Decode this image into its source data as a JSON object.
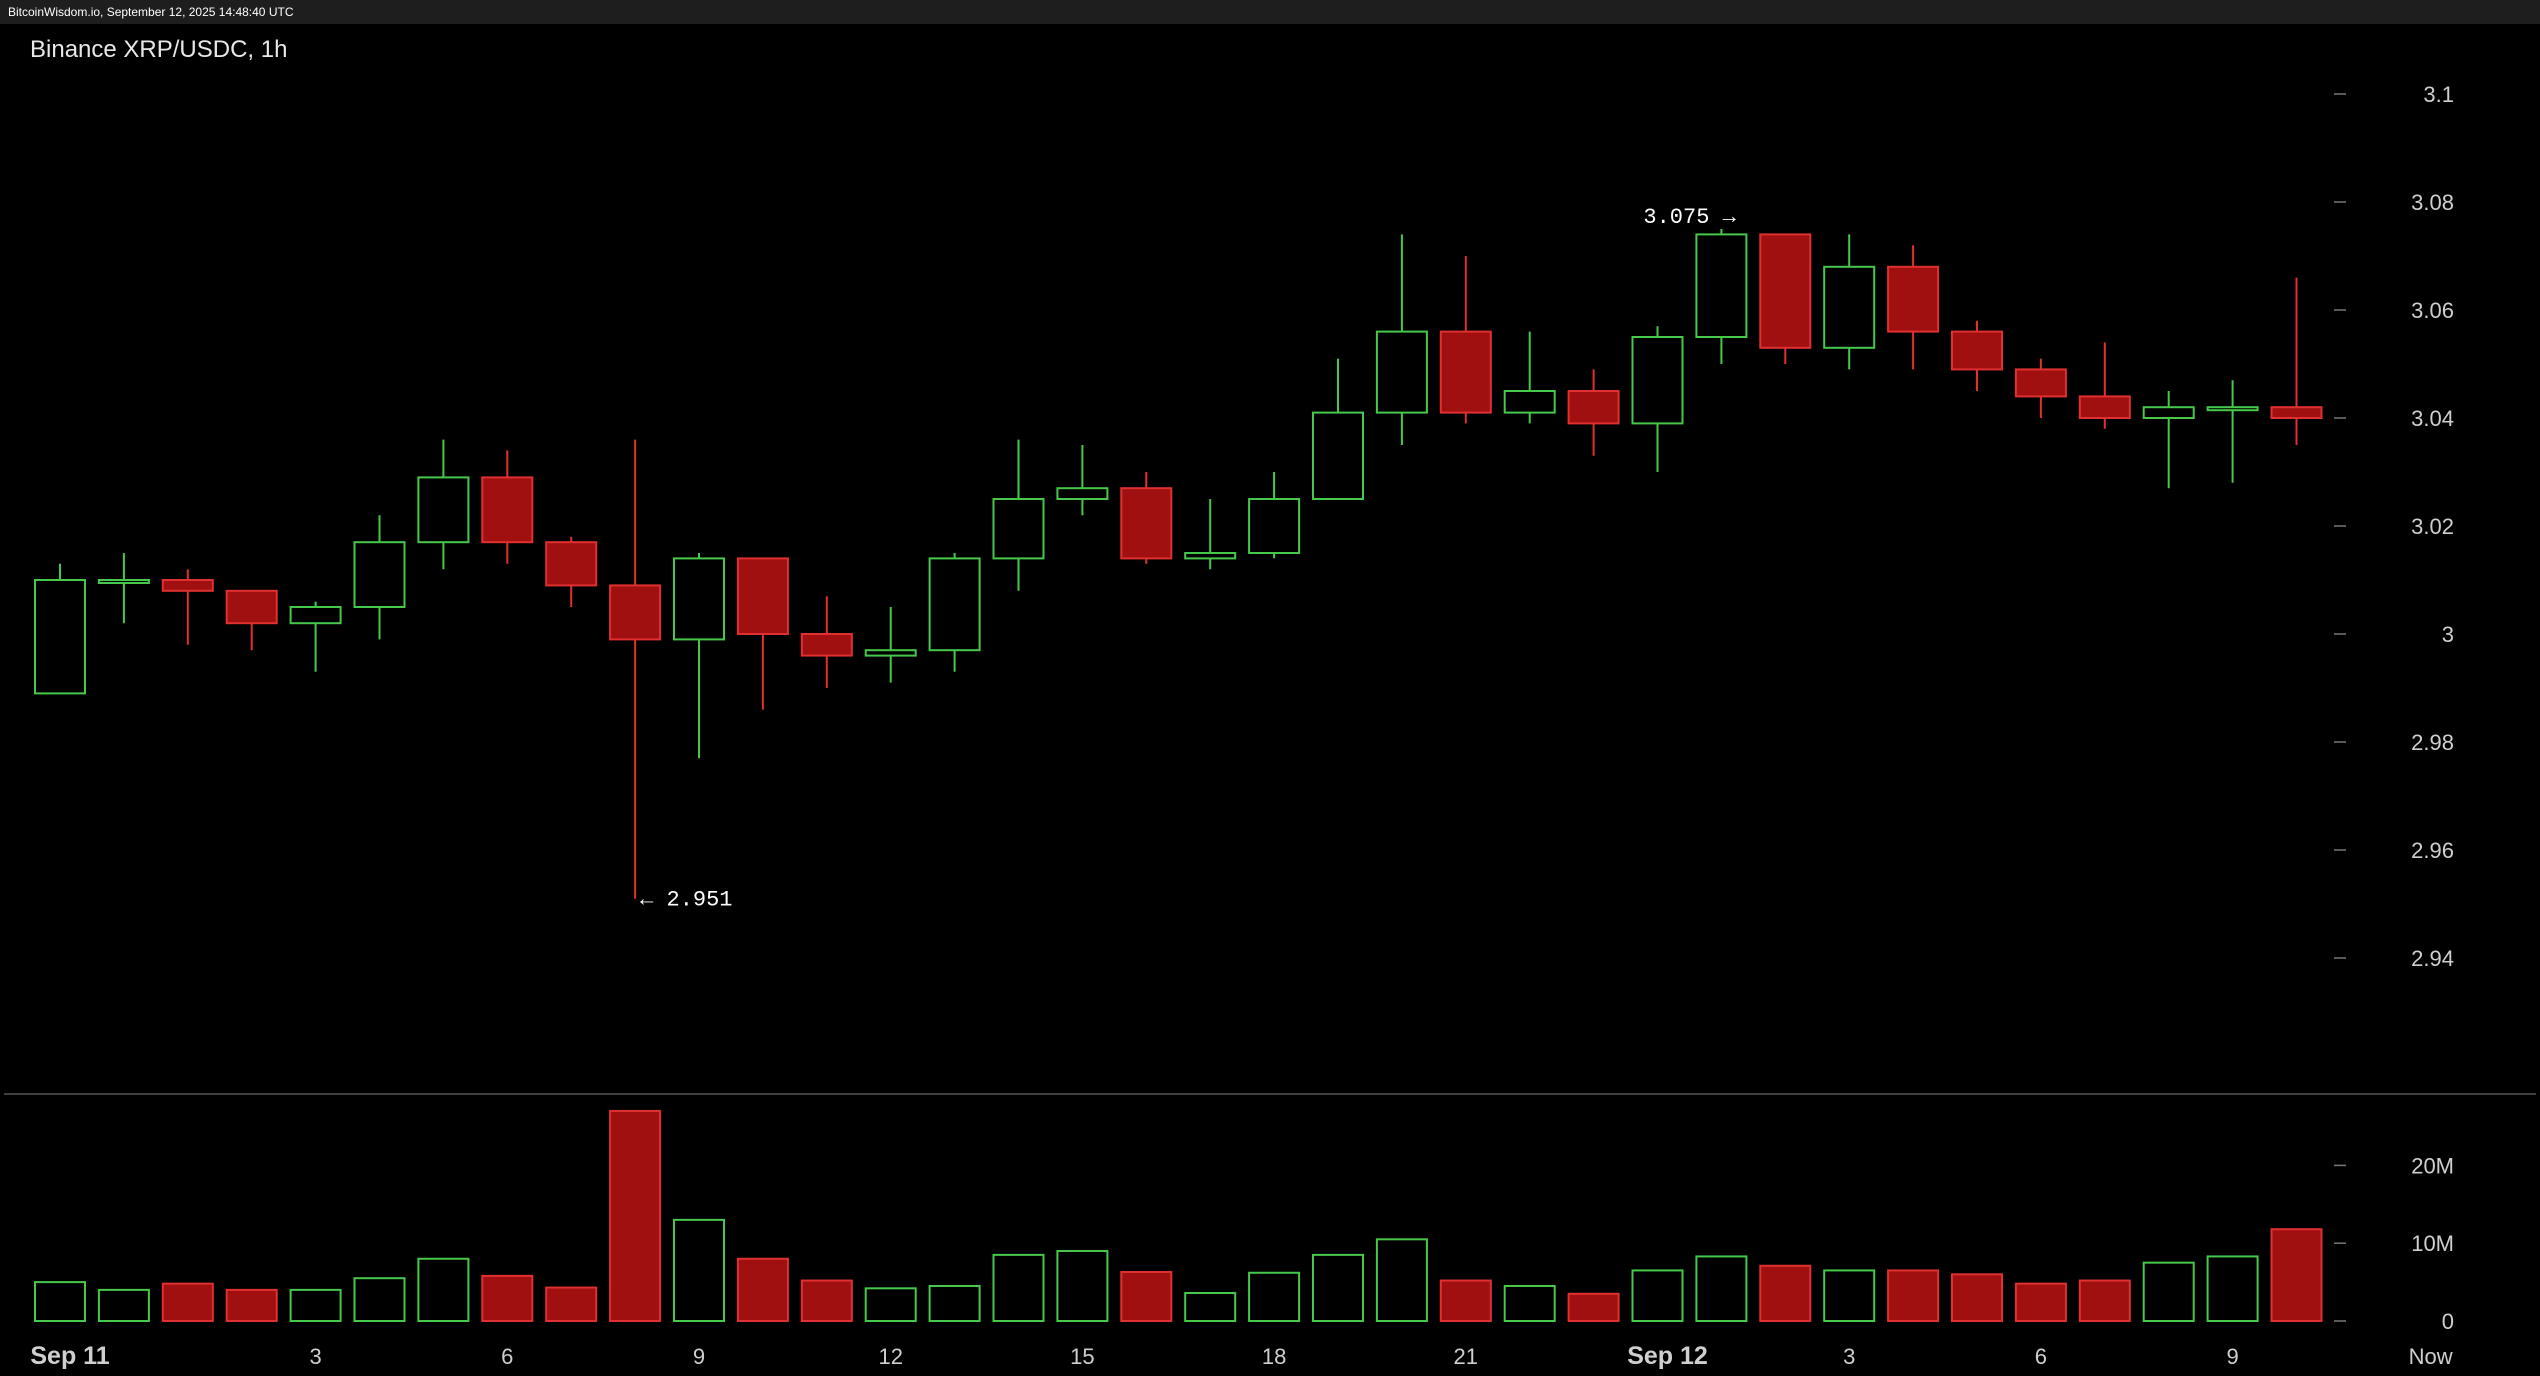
{
  "header": {
    "source_text": "BitcoinWisdom.io, September 12, 2025 14:48:40 UTC"
  },
  "chart_title": "Binance XRP/USDC, 1h",
  "colors": {
    "up": "#46c84a",
    "down_fill": "#a01010",
    "down_line": "#e03030",
    "background": "#000000",
    "axis_text": "#cfcfcf",
    "separator": "#555555"
  },
  "chart_data": {
    "type": "candlestick",
    "title": "Binance XRP/USDC, 1h",
    "price_axis": {
      "ticks": [
        "3.1",
        "3.08",
        "3.06",
        "3.04",
        "3.02",
        "3",
        "2.98",
        "2.96",
        "2.94"
      ]
    },
    "volume_axis": {
      "ticks": [
        "20M",
        "10M",
        "0"
      ]
    },
    "x_tick_labels": [
      "Sep 11",
      "3",
      "6",
      "9",
      "12",
      "15",
      "18",
      "21",
      "Sep 12",
      "3",
      "6",
      "9",
      "Now"
    ],
    "annotations": {
      "high": "3.075 →",
      "low": "← 2.951"
    },
    "candles": [
      {
        "o": 2.989,
        "h": 3.013,
        "l": 2.989,
        "c": 3.01,
        "v": 5.0
      },
      {
        "o": 3.01,
        "h": 3.015,
        "l": 3.002,
        "c": 3.01,
        "v": 4.0
      },
      {
        "o": 3.01,
        "h": 3.012,
        "l": 2.998,
        "c": 3.008,
        "v": 4.8
      },
      {
        "o": 3.008,
        "h": 3.008,
        "l": 2.997,
        "c": 3.002,
        "v": 4.0
      },
      {
        "o": 3.002,
        "h": 3.006,
        "l": 2.993,
        "c": 3.005,
        "v": 4.0
      },
      {
        "o": 3.005,
        "h": 3.022,
        "l": 2.999,
        "c": 3.017,
        "v": 5.5
      },
      {
        "o": 3.017,
        "h": 3.036,
        "l": 3.012,
        "c": 3.029,
        "v": 8.0
      },
      {
        "o": 3.029,
        "h": 3.034,
        "l": 3.013,
        "c": 3.017,
        "v": 5.8
      },
      {
        "o": 3.017,
        "h": 3.018,
        "l": 3.005,
        "c": 3.009,
        "v": 4.3
      },
      {
        "o": 3.009,
        "h": 3.036,
        "l": 2.951,
        "c": 2.999,
        "v": 27.0
      },
      {
        "o": 2.999,
        "h": 3.015,
        "l": 2.977,
        "c": 3.014,
        "v": 13.0
      },
      {
        "o": 3.014,
        "h": 3.014,
        "l": 2.986,
        "c": 3.0,
        "v": 8.0
      },
      {
        "o": 3.0,
        "h": 3.007,
        "l": 2.99,
        "c": 2.996,
        "v": 5.2
      },
      {
        "o": 2.996,
        "h": 3.005,
        "l": 2.991,
        "c": 2.997,
        "v": 4.2
      },
      {
        "o": 2.997,
        "h": 3.015,
        "l": 2.993,
        "c": 3.014,
        "v": 4.5
      },
      {
        "o": 3.014,
        "h": 3.036,
        "l": 3.008,
        "c": 3.025,
        "v": 8.5
      },
      {
        "o": 3.025,
        "h": 3.035,
        "l": 3.022,
        "c": 3.027,
        "v": 9.0
      },
      {
        "o": 3.027,
        "h": 3.03,
        "l": 3.013,
        "c": 3.014,
        "v": 6.3
      },
      {
        "o": 3.014,
        "h": 3.025,
        "l": 3.012,
        "c": 3.015,
        "v": 3.6
      },
      {
        "o": 3.015,
        "h": 3.03,
        "l": 3.014,
        "c": 3.025,
        "v": 6.2
      },
      {
        "o": 3.025,
        "h": 3.051,
        "l": 3.025,
        "c": 3.041,
        "v": 8.5
      },
      {
        "o": 3.041,
        "h": 3.074,
        "l": 3.035,
        "c": 3.056,
        "v": 10.5
      },
      {
        "o": 3.056,
        "h": 3.07,
        "l": 3.039,
        "c": 3.041,
        "v": 5.2
      },
      {
        "o": 3.041,
        "h": 3.056,
        "l": 3.039,
        "c": 3.045,
        "v": 4.5
      },
      {
        "o": 3.045,
        "h": 3.049,
        "l": 3.033,
        "c": 3.039,
        "v": 3.5
      },
      {
        "o": 3.039,
        "h": 3.057,
        "l": 3.03,
        "c": 3.055,
        "v": 6.5
      },
      {
        "o": 3.055,
        "h": 3.075,
        "l": 3.05,
        "c": 3.074,
        "v": 8.3
      },
      {
        "o": 3.074,
        "h": 3.074,
        "l": 3.05,
        "c": 3.053,
        "v": 7.1
      },
      {
        "o": 3.053,
        "h": 3.074,
        "l": 3.049,
        "c": 3.068,
        "v": 6.5
      },
      {
        "o": 3.068,
        "h": 3.072,
        "l": 3.049,
        "c": 3.056,
        "v": 6.5
      },
      {
        "o": 3.056,
        "h": 3.058,
        "l": 3.045,
        "c": 3.049,
        "v": 6.0
      },
      {
        "o": 3.049,
        "h": 3.051,
        "l": 3.04,
        "c": 3.044,
        "v": 4.8
      },
      {
        "o": 3.044,
        "h": 3.054,
        "l": 3.038,
        "c": 3.04,
        "v": 5.2
      },
      {
        "o": 3.04,
        "h": 3.045,
        "l": 3.027,
        "c": 3.042,
        "v": 7.5
      },
      {
        "o": 3.042,
        "h": 3.047,
        "l": 3.028,
        "c": 3.042,
        "v": 8.3
      },
      {
        "o": 3.042,
        "h": 3.066,
        "l": 3.035,
        "c": 3.04,
        "v": 11.8
      }
    ]
  }
}
